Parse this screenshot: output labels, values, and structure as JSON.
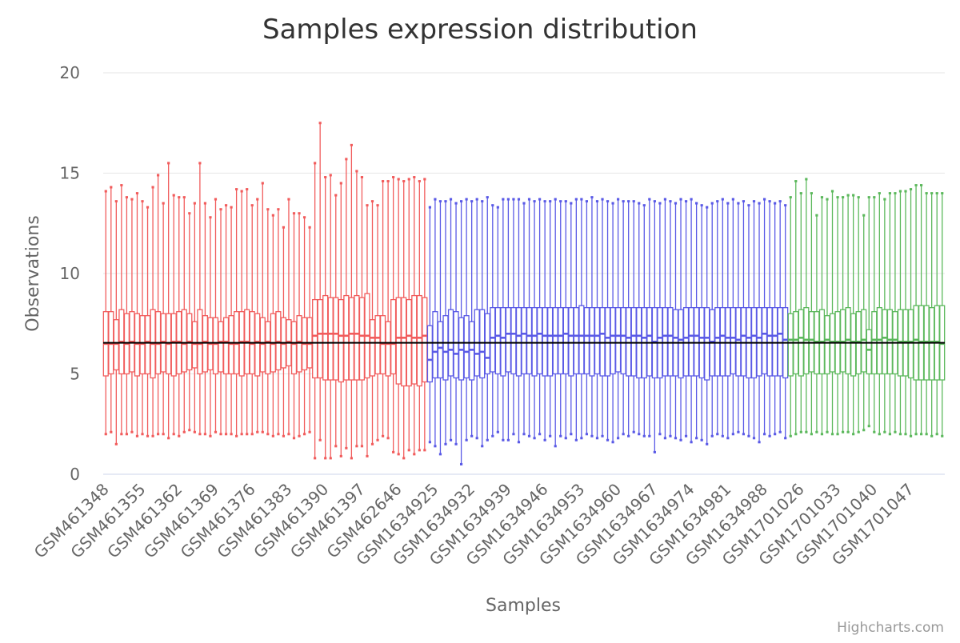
{
  "chart_data": {
    "type": "boxplot",
    "title": "Samples expression distribution",
    "xlabel": "Samples",
    "ylabel": "Observations",
    "ylim": [
      0,
      20
    ],
    "yticks": [
      0,
      5,
      10,
      15,
      20
    ],
    "grid": "horizontal",
    "legend": "none",
    "reference_line": 6.55,
    "credits": "Highcharts.com",
    "tick_labels": [
      "GSM461348",
      "GSM461355",
      "GSM461362",
      "GSM461369",
      "GSM461376",
      "GSM461383",
      "GSM461390",
      "GSM461397",
      "GSM462646",
      "GSM1634925",
      "GSM1634932",
      "GSM1634939",
      "GSM1634946",
      "GSM1634953",
      "GSM1634960",
      "GSM1634967",
      "GSM1634974",
      "GSM1634981",
      "GSM1634988",
      "GSM1701026",
      "GSM1701033",
      "GSM1701040",
      "GSM1701047"
    ],
    "series": [
      {
        "color": "#f15c5c",
        "low": [
          2.0,
          2.1,
          1.5,
          2.0,
          2.0,
          2.1,
          1.9,
          2.0,
          1.9,
          1.9,
          2.0,
          2.0,
          1.8,
          2.0,
          1.9,
          2.1,
          2.2,
          2.1,
          2.0,
          2.0,
          1.9,
          2.1,
          2.0,
          2.0,
          2.0,
          1.9,
          2.0,
          2.0,
          2.0,
          2.1,
          2.1,
          2.0,
          1.9,
          2.0,
          1.9,
          2.0,
          1.8,
          1.9,
          2.0,
          2.1,
          0.8,
          1.7,
          0.8,
          0.8,
          1.4,
          0.9,
          1.3,
          0.8,
          1.4,
          1.4,
          0.9,
          1.5,
          1.7,
          1.9,
          1.8,
          1.1,
          1.0,
          0.8,
          1.2,
          1.0,
          1.2,
          1.2
        ],
        "q1": [
          4.9,
          5.0,
          5.2,
          5.0,
          5.0,
          5.1,
          4.9,
          5.0,
          5.0,
          4.8,
          5.0,
          5.1,
          5.0,
          4.9,
          5.0,
          5.1,
          5.2,
          5.3,
          5.0,
          5.1,
          5.2,
          5.0,
          5.1,
          5.0,
          5.0,
          5.0,
          4.9,
          5.0,
          5.0,
          4.9,
          5.1,
          5.0,
          5.1,
          5.2,
          5.3,
          5.4,
          5.0,
          5.1,
          5.2,
          5.3,
          4.8,
          4.8,
          4.7,
          4.7,
          4.7,
          4.6,
          4.7,
          4.7,
          4.7,
          4.7,
          4.8,
          4.9,
          5.0,
          5.0,
          4.9,
          5.0,
          4.5,
          4.4,
          4.4,
          4.5,
          4.4,
          4.6
        ],
        "median": [
          6.5,
          6.5,
          6.5,
          6.6,
          6.5,
          6.6,
          6.5,
          6.5,
          6.6,
          6.5,
          6.5,
          6.6,
          6.5,
          6.6,
          6.6,
          6.5,
          6.6,
          6.5,
          6.5,
          6.6,
          6.5,
          6.5,
          6.6,
          6.6,
          6.5,
          6.5,
          6.6,
          6.6,
          6.5,
          6.6,
          6.5,
          6.6,
          6.5,
          6.6,
          6.5,
          6.6,
          6.5,
          6.6,
          6.5,
          6.5,
          6.9,
          7.0,
          7.0,
          7.0,
          7.0,
          6.9,
          6.9,
          7.0,
          7.0,
          6.9,
          6.9,
          6.8,
          6.8,
          6.5,
          6.5,
          6.5,
          6.8,
          6.8,
          6.9,
          6.8,
          6.8,
          6.9
        ],
        "q3": [
          8.1,
          8.1,
          7.7,
          8.2,
          8.0,
          8.1,
          8.0,
          7.9,
          7.9,
          8.2,
          8.1,
          8.0,
          8.0,
          8.0,
          8.1,
          8.2,
          8.0,
          7.6,
          8.2,
          7.9,
          7.8,
          7.8,
          7.6,
          7.8,
          7.9,
          8.1,
          8.1,
          8.2,
          8.1,
          8.0,
          7.8,
          7.6,
          8.0,
          8.1,
          7.8,
          7.7,
          7.6,
          7.9,
          7.8,
          7.8,
          8.7,
          8.7,
          8.9,
          8.8,
          8.8,
          8.7,
          8.9,
          8.8,
          8.9,
          8.8,
          9.0,
          7.7,
          7.9,
          7.9,
          7.6,
          8.7,
          8.8,
          8.8,
          8.7,
          8.9,
          8.9,
          8.8
        ],
        "high": [
          14.1,
          14.3,
          13.6,
          14.4,
          13.8,
          13.7,
          14.0,
          13.6,
          13.3,
          14.3,
          14.9,
          13.5,
          15.5,
          13.9,
          13.8,
          13.8,
          13.0,
          13.5,
          15.5,
          13.5,
          12.8,
          13.7,
          13.2,
          13.4,
          13.3,
          14.2,
          14.1,
          14.2,
          13.4,
          13.7,
          14.5,
          13.2,
          12.9,
          13.2,
          12.3,
          13.7,
          13.0,
          13.0,
          12.8,
          12.3,
          15.5,
          17.5,
          14.8,
          14.9,
          13.9,
          14.5,
          15.7,
          16.4,
          15.1,
          14.8,
          13.4,
          13.6,
          13.4,
          14.6,
          14.6,
          14.8,
          14.7,
          14.6,
          14.7,
          14.8,
          14.6,
          14.7
        ]
      },
      {
        "color": "#5a5ae6",
        "low": [
          1.6,
          1.4,
          1.0,
          1.5,
          1.7,
          1.5,
          0.5,
          1.7,
          1.9,
          1.8,
          1.4,
          1.7,
          1.9,
          2.1,
          1.7,
          1.7,
          2.0,
          1.6,
          2.0,
          1.9,
          1.8,
          2.0,
          1.7,
          1.9,
          1.4,
          1.9,
          1.8,
          2.0,
          1.7,
          1.8,
          2.0,
          1.9,
          1.8,
          1.9,
          1.7,
          1.6,
          1.8,
          2.0,
          1.9,
          2.1,
          2.0,
          1.9,
          1.9,
          1.1,
          2.0,
          1.8,
          1.9,
          1.8,
          1.7,
          1.9,
          1.6,
          1.8,
          1.7,
          1.5,
          1.9,
          2.0,
          1.9,
          1.8,
          2.0,
          2.1,
          2.0,
          1.9,
          1.8,
          1.6,
          2.0,
          1.9,
          2.0,
          2.1,
          1.8
        ],
        "q1": [
          4.6,
          4.8,
          4.8,
          4.7,
          4.9,
          4.8,
          4.7,
          4.8,
          4.7,
          4.9,
          4.8,
          5.0,
          5.1,
          5.0,
          4.9,
          5.1,
          5.0,
          4.9,
          5.0,
          5.0,
          4.9,
          5.0,
          4.9,
          4.9,
          5.0,
          5.0,
          5.0,
          4.9,
          5.0,
          5.0,
          5.0,
          4.9,
          5.0,
          4.9,
          4.9,
          5.0,
          5.1,
          5.0,
          4.9,
          4.9,
          4.8,
          4.8,
          4.9,
          4.8,
          4.8,
          4.9,
          4.9,
          4.9,
          4.8,
          4.9,
          4.9,
          4.9,
          4.8,
          4.7,
          4.9,
          4.9,
          4.9,
          4.9,
          5.0,
          4.9,
          4.9,
          4.8,
          4.8,
          4.9,
          5.0,
          4.9,
          4.9,
          4.9,
          4.8
        ],
        "median": [
          5.7,
          6.1,
          6.3,
          6.1,
          6.2,
          6.0,
          6.2,
          6.1,
          6.2,
          6.0,
          6.1,
          5.8,
          6.8,
          6.9,
          6.8,
          7.0,
          7.0,
          6.9,
          7.0,
          6.9,
          6.9,
          7.0,
          6.9,
          6.9,
          6.9,
          6.9,
          7.0,
          6.9,
          6.9,
          6.9,
          6.9,
          6.9,
          6.9,
          7.0,
          6.8,
          6.9,
          6.9,
          6.9,
          6.8,
          6.9,
          6.9,
          6.8,
          6.9,
          6.6,
          6.8,
          6.9,
          6.9,
          6.8,
          6.7,
          6.8,
          6.9,
          6.9,
          6.8,
          6.8,
          6.6,
          6.8,
          6.9,
          6.8,
          6.8,
          6.7,
          6.9,
          6.8,
          6.9,
          6.8,
          7.0,
          6.9,
          6.9,
          7.0,
          6.7
        ],
        "q3": [
          7.4,
          8.1,
          7.6,
          7.9,
          8.2,
          8.1,
          7.8,
          7.9,
          7.6,
          8.2,
          8.2,
          8.0,
          8.3,
          8.3,
          8.3,
          8.3,
          8.3,
          8.3,
          8.3,
          8.3,
          8.3,
          8.3,
          8.3,
          8.3,
          8.3,
          8.3,
          8.3,
          8.3,
          8.3,
          8.4,
          8.3,
          8.3,
          8.3,
          8.3,
          8.3,
          8.3,
          8.3,
          8.3,
          8.3,
          8.3,
          8.3,
          8.3,
          8.3,
          8.3,
          8.3,
          8.3,
          8.3,
          8.2,
          8.2,
          8.3,
          8.3,
          8.3,
          8.3,
          8.3,
          8.2,
          8.3,
          8.3,
          8.3,
          8.3,
          8.3,
          8.3,
          8.3,
          8.3,
          8.3,
          8.3,
          8.3,
          8.3,
          8.3,
          8.3
        ],
        "high": [
          13.3,
          13.7,
          13.6,
          13.6,
          13.7,
          13.5,
          13.6,
          13.7,
          13.6,
          13.7,
          13.6,
          13.8,
          13.4,
          13.3,
          13.7,
          13.7,
          13.7,
          13.7,
          13.5,
          13.7,
          13.6,
          13.7,
          13.6,
          13.6,
          13.7,
          13.6,
          13.6,
          13.5,
          13.7,
          13.7,
          13.6,
          13.8,
          13.6,
          13.7,
          13.6,
          13.5,
          13.7,
          13.6,
          13.6,
          13.6,
          13.5,
          13.4,
          13.7,
          13.6,
          13.5,
          13.7,
          13.6,
          13.5,
          13.7,
          13.6,
          13.7,
          13.5,
          13.4,
          13.3,
          13.5,
          13.6,
          13.7,
          13.5,
          13.7,
          13.5,
          13.6,
          13.4,
          13.6,
          13.5,
          13.7,
          13.6,
          13.5,
          13.6,
          13.4
        ]
      },
      {
        "color": "#5cb85c",
        "low": [
          1.9,
          2.0,
          2.1,
          2.1,
          2.0,
          2.1,
          2.0,
          2.1,
          2.0,
          2.0,
          2.1,
          2.1,
          2.0,
          2.1,
          2.2,
          2.4,
          2.1,
          2.0,
          2.1,
          2.0,
          2.1,
          2.0,
          2.0,
          1.9,
          2.0,
          2.0,
          2.0,
          1.9,
          2.0,
          1.9
        ],
        "q1": [
          4.9,
          5.0,
          4.9,
          5.0,
          5.1,
          5.0,
          5.0,
          5.0,
          5.1,
          5.0,
          5.1,
          5.0,
          4.9,
          5.0,
          5.1,
          5.0,
          5.0,
          5.0,
          5.0,
          5.0,
          5.0,
          4.9,
          4.9,
          4.8,
          4.7,
          4.7,
          4.7,
          4.7,
          4.7,
          4.7
        ],
        "median": [
          6.7,
          6.7,
          6.8,
          6.7,
          6.7,
          6.6,
          6.6,
          6.7,
          6.6,
          6.6,
          6.6,
          6.7,
          6.6,
          6.6,
          6.7,
          6.2,
          6.7,
          6.7,
          6.8,
          6.7,
          6.7,
          6.6,
          6.6,
          6.6,
          6.7,
          6.6,
          6.6,
          6.6,
          6.6,
          6.5
        ],
        "q3": [
          8.0,
          8.1,
          8.2,
          8.3,
          8.1,
          8.1,
          8.2,
          7.9,
          8.0,
          8.1,
          8.2,
          8.3,
          8.0,
          8.1,
          8.2,
          7.2,
          8.1,
          8.3,
          8.2,
          8.2,
          8.1,
          8.2,
          8.2,
          8.2,
          8.4,
          8.4,
          8.4,
          8.3,
          8.4,
          8.4
        ],
        "high": [
          13.8,
          14.6,
          14.0,
          14.7,
          14.0,
          12.9,
          13.8,
          13.7,
          14.1,
          13.8,
          13.8,
          13.9,
          13.9,
          13.8,
          12.9,
          13.8,
          13.8,
          14.0,
          13.7,
          14.0,
          14.0,
          14.1,
          14.1,
          14.2,
          14.4,
          14.4,
          14.0,
          14.0,
          14.0,
          14.0
        ]
      }
    ]
  }
}
